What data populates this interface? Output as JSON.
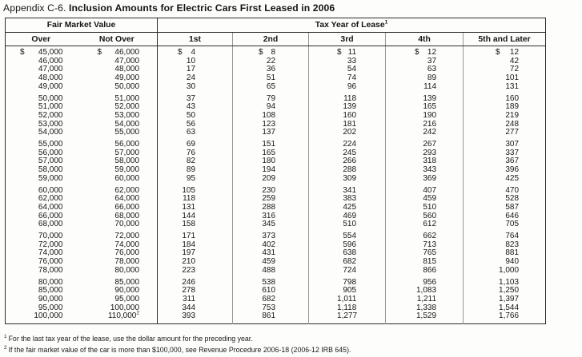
{
  "title": {
    "prefix": "Appendix C-6.",
    "main": "Inclusion Amounts for Electric Cars First Leased in 2006"
  },
  "table": {
    "group_headers": {
      "fmv": "Fair Market Value",
      "tax_year": "Tax Year of Lease",
      "tax_year_footnote_ref": "1"
    },
    "columns": [
      "Over",
      "Not Over",
      "1st",
      "2nd",
      "3rd",
      "4th",
      "5th and Later"
    ],
    "currency_row": {
      "group": 0,
      "row": 0,
      "symbol": "$"
    },
    "sup_cell": {
      "group": 5,
      "row": 4,
      "col": 1,
      "ref": "2"
    },
    "groups": [
      {
        "rows": [
          [
            "45,000",
            "46,000",
            "4",
            "8",
            "11",
            "12",
            "12"
          ],
          [
            "46,000",
            "47,000",
            "10",
            "22",
            "33",
            "37",
            "42"
          ],
          [
            "47,000",
            "48,000",
            "17",
            "36",
            "54",
            "63",
            "72"
          ],
          [
            "48,000",
            "49,000",
            "24",
            "51",
            "74",
            "89",
            "101"
          ],
          [
            "49,000",
            "50,000",
            "30",
            "65",
            "96",
            "114",
            "131"
          ]
        ]
      },
      {
        "rows": [
          [
            "50,000",
            "51,000",
            "37",
            "79",
            "118",
            "139",
            "160"
          ],
          [
            "51,000",
            "52,000",
            "43",
            "94",
            "139",
            "165",
            "189"
          ],
          [
            "52,000",
            "53,000",
            "50",
            "108",
            "160",
            "190",
            "219"
          ],
          [
            "53,000",
            "54,000",
            "56",
            "123",
            "181",
            "216",
            "248"
          ],
          [
            "54,000",
            "55,000",
            "63",
            "137",
            "202",
            "242",
            "277"
          ]
        ]
      },
      {
        "rows": [
          [
            "55,000",
            "56,000",
            "69",
            "151",
            "224",
            "267",
            "307"
          ],
          [
            "56,000",
            "57,000",
            "76",
            "165",
            "245",
            "293",
            "337"
          ],
          [
            "57,000",
            "58,000",
            "82",
            "180",
            "266",
            "318",
            "367"
          ],
          [
            "58,000",
            "59,000",
            "89",
            "194",
            "288",
            "343",
            "396"
          ],
          [
            "59,000",
            "60,000",
            "95",
            "209",
            "309",
            "369",
            "425"
          ]
        ]
      },
      {
        "rows": [
          [
            "60,000",
            "62,000",
            "105",
            "230",
            "341",
            "407",
            "470"
          ],
          [
            "62,000",
            "64,000",
            "118",
            "259",
            "383",
            "459",
            "528"
          ],
          [
            "64,000",
            "66,000",
            "131",
            "288",
            "425",
            "510",
            "587"
          ],
          [
            "66,000",
            "68,000",
            "144",
            "316",
            "469",
            "560",
            "646"
          ],
          [
            "68,000",
            "70,000",
            "158",
            "345",
            "510",
            "612",
            "705"
          ]
        ]
      },
      {
        "rows": [
          [
            "70,000",
            "72,000",
            "171",
            "373",
            "554",
            "662",
            "764"
          ],
          [
            "72,000",
            "74,000",
            "184",
            "402",
            "596",
            "713",
            "823"
          ],
          [
            "74,000",
            "76,000",
            "197",
            "431",
            "638",
            "765",
            "881"
          ],
          [
            "76,000",
            "78,000",
            "210",
            "459",
            "682",
            "815",
            "940"
          ],
          [
            "78,000",
            "80,000",
            "223",
            "488",
            "724",
            "866",
            "1,000"
          ]
        ]
      },
      {
        "rows": [
          [
            "80,000",
            "85,000",
            "246",
            "538",
            "798",
            "956",
            "1,103"
          ],
          [
            "85,000",
            "90,000",
            "278",
            "610",
            "905",
            "1,083",
            "1,250"
          ],
          [
            "90,000",
            "95,000",
            "311",
            "682",
            "1,011",
            "1,211",
            "1,397"
          ],
          [
            "95,000",
            "100,000",
            "344",
            "753",
            "1,118",
            "1,338",
            "1,544"
          ],
          [
            "100,000",
            "110,000",
            "393",
            "861",
            "1,277",
            "1,529",
            "1,766"
          ]
        ]
      }
    ]
  },
  "footnotes": [
    {
      "ref": "1",
      "text": "For the last tax year of the lease, use the dollar amount for the preceding year."
    },
    {
      "ref": "2",
      "text": "If the fair market value of the car is more than $100,000, see Revenue Procedure 2006-18 (2006-12 IRB 645)."
    }
  ],
  "colors": {
    "line_dark": "#2b2b2b",
    "line_gray": "#969696",
    "text": "#151515"
  }
}
